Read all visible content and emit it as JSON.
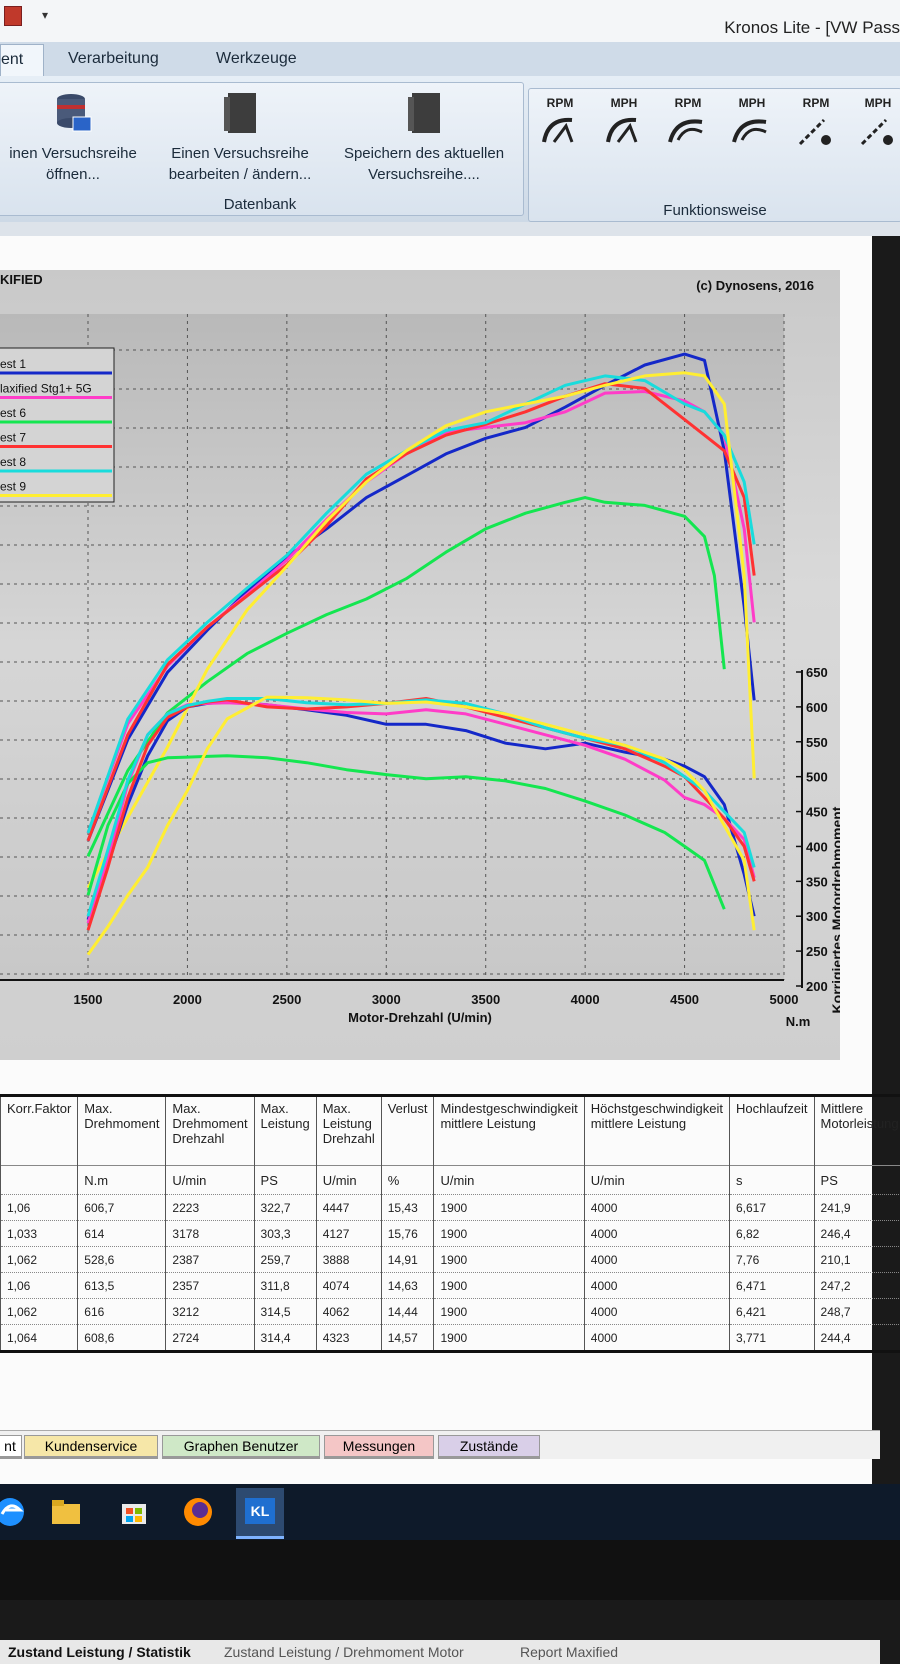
{
  "window": {
    "title": "Kronos Lite - [VW Pass"
  },
  "ribbon": {
    "tabs": [
      "ent",
      "Verarbeitung",
      "Werkzeuge"
    ],
    "buttons": [
      {
        "label1": "inen Versuchsreihe",
        "label2": "öffnen..."
      },
      {
        "label1": "Einen Versuchsreihe",
        "label2": "bearbeiten / ändern..."
      },
      {
        "label1": "Speichern des aktuellen",
        "label2": "Versuchsreihe...."
      }
    ],
    "group_datenbank": "Datenbank",
    "function_buttons": [
      "RPM",
      "MPH",
      "RPM",
      "MPH",
      "RPM",
      "MPH"
    ],
    "group_funktion": "Funktionsweise"
  },
  "chart_data": {
    "type": "line",
    "title": "KIFIED",
    "copyright": "(c) Dynosens, 2016",
    "xlabel": "Motor-Drehzahl (U/min)",
    "ylabel_right": "Korrigiertes Motordrehmoment",
    "yunit_right": "N.m",
    "x_ticks": [
      "1500",
      "2000",
      "2500",
      "3000",
      "3500",
      "4000",
      "4500",
      "5000"
    ],
    "y_ticks_right": [
      "650",
      "600",
      "550",
      "500",
      "450",
      "400",
      "350",
      "300",
      "250",
      "200"
    ],
    "xlim": [
      1000,
      5000
    ],
    "ylim_torque": [
      200,
      650
    ],
    "grid": true,
    "legend_position": "top-left",
    "legend": [
      "est 1",
      "laxified Stg1+ 5G",
      "est 6",
      "est 7",
      "est 8",
      "est 9"
    ],
    "colors": [
      "#1428c8",
      "#ff3cc8",
      "#14e650",
      "#ff3232",
      "#19dcdc",
      "#ffee32"
    ],
    "torque_series": [
      {
        "name": "est 1",
        "x": [
          1500,
          1600,
          1700,
          1800,
          1900,
          2000,
          2100,
          2200,
          2400,
          2600,
          2800,
          3000,
          3200,
          3400,
          3600,
          3800,
          4000,
          4200,
          4400,
          4500,
          4600,
          4700,
          4800,
          4850
        ],
        "y": [
          295,
          375,
          460,
          530,
          580,
          600,
          605,
          607,
          603,
          596,
          588,
          575,
          575,
          566,
          548,
          540,
          548,
          535,
          525,
          515,
          500,
          460,
          360,
          300
        ]
      },
      {
        "name": "laxified Stg1+ 5G",
        "x": [
          1500,
          1600,
          1700,
          1800,
          1900,
          2000,
          2100,
          2200,
          2400,
          2600,
          2800,
          3000,
          3200,
          3400,
          3600,
          3800,
          4000,
          4200,
          4400,
          4500,
          4600,
          4700,
          4800,
          4850
        ],
        "y": [
          290,
          380,
          490,
          560,
          590,
          603,
          605,
          606,
          603,
          597,
          592,
          590,
          596,
          590,
          575,
          560,
          545,
          525,
          495,
          470,
          460,
          440,
          410,
          355
        ]
      },
      {
        "name": "est 6",
        "x": [
          1500,
          1600,
          1700,
          1800,
          1900,
          2000,
          2100,
          2200,
          2400,
          2600,
          2800,
          3000,
          3200,
          3400,
          3600,
          3800,
          4000,
          4200,
          4400,
          4500,
          4600,
          4700
        ],
        "y": [
          330,
          430,
          490,
          520,
          527,
          528,
          529,
          530,
          527,
          520,
          510,
          503,
          497,
          500,
          494,
          483,
          465,
          445,
          420,
          400,
          380,
          310
        ]
      },
      {
        "name": "est 7",
        "x": [
          1500,
          1600,
          1700,
          1800,
          1900,
          2000,
          2100,
          2200,
          2400,
          2600,
          2800,
          3000,
          3200,
          3400,
          3600,
          3800,
          4000,
          4200,
          4400,
          4500,
          4600,
          4700,
          4800,
          4850
        ],
        "y": [
          280,
          370,
          470,
          545,
          585,
          600,
          607,
          610,
          600,
          597,
          600,
          605,
          612,
          600,
          585,
          570,
          555,
          540,
          515,
          500,
          470,
          440,
          400,
          350
        ]
      },
      {
        "name": "est 8",
        "x": [
          1500,
          1600,
          1700,
          1800,
          1900,
          2000,
          2100,
          2200,
          2400,
          2600,
          2800,
          3000,
          3200,
          3400,
          3600,
          3800,
          4000,
          4200,
          4400,
          4500,
          4600,
          4700,
          4800,
          4850
        ],
        "y": [
          300,
          395,
          495,
          560,
          590,
          602,
          608,
          612,
          612,
          606,
          603,
          605,
          610,
          605,
          590,
          570,
          555,
          545,
          520,
          500,
          480,
          450,
          420,
          370
        ]
      },
      {
        "name": "est 9",
        "x": [
          1500,
          1600,
          1700,
          1800,
          1900,
          2000,
          2100,
          2200,
          2400,
          2600,
          2800,
          3000,
          3200,
          3400,
          3600,
          3800,
          4000,
          4200,
          4400,
          4500,
          4600,
          4700,
          4800,
          4850
        ],
        "y": [
          245,
          285,
          330,
          370,
          430,
          480,
          540,
          583,
          614,
          613,
          610,
          605,
          607,
          600,
          590,
          575,
          560,
          545,
          525,
          510,
          480,
          430,
          380,
          280
        ]
      }
    ],
    "power_series_unlabeled_axis": [
      {
        "name": "est 1",
        "x": [
          1500,
          1700,
          1900,
          2100,
          2300,
          2500,
          2700,
          2900,
          3100,
          3300,
          3500,
          3700,
          3900,
          4100,
          4300,
          4500,
          4600,
          4700,
          4800,
          4850
        ],
        "y": [
          70,
          135,
          178,
          205,
          230,
          252,
          270,
          290,
          304,
          318,
          328,
          335,
          348,
          362,
          375,
          382,
          378,
          320,
          220,
          160
        ]
      },
      {
        "name": "laxified Stg1+ 5G",
        "x": [
          1500,
          1700,
          1900,
          2100,
          2300,
          2500,
          2700,
          2900,
          3100,
          3300,
          3500,
          3700,
          3900,
          4100,
          4300,
          4500,
          4600,
          4700,
          4800,
          4850
        ],
        "y": [
          75,
          145,
          182,
          207,
          228,
          250,
          276,
          300,
          318,
          332,
          335,
          338,
          345,
          357,
          358,
          352,
          345,
          330,
          270,
          210
        ]
      },
      {
        "name": "est 6",
        "x": [
          1500,
          1700,
          1900,
          2100,
          2300,
          2500,
          2700,
          2900,
          3100,
          3300,
          3500,
          3700,
          3900,
          4000,
          4100,
          4300,
          4500,
          4600,
          4650,
          4700
        ],
        "y": [
          60,
          115,
          152,
          172,
          190,
          203,
          215,
          225,
          238,
          255,
          270,
          280,
          287,
          290,
          287,
          285,
          278,
          265,
          240,
          180
        ]
      },
      {
        "name": "est 7",
        "x": [
          1500,
          1700,
          1900,
          2100,
          2300,
          2500,
          2700,
          2900,
          3100,
          3300,
          3500,
          3700,
          3900,
          4100,
          4300,
          4500,
          4600,
          4700,
          4800,
          4850
        ],
        "y": [
          70,
          138,
          183,
          207,
          227,
          247,
          272,
          302,
          318,
          330,
          337,
          345,
          355,
          363,
          360,
          340,
          330,
          320,
          290,
          240
        ]
      },
      {
        "name": "est 8",
        "x": [
          1500,
          1700,
          1900,
          2100,
          2300,
          2500,
          2700,
          2900,
          3100,
          3300,
          3500,
          3700,
          3900,
          4100,
          4300,
          4500,
          4600,
          4700,
          4800,
          4850
        ],
        "y": [
          75,
          148,
          186,
          210,
          232,
          253,
          280,
          305,
          320,
          333,
          338,
          350,
          362,
          368,
          365,
          350,
          345,
          330,
          300,
          260
        ]
      },
      {
        "name": "est 9",
        "x": [
          1500,
          1700,
          1900,
          2100,
          2300,
          2500,
          2700,
          2900,
          3100,
          3300,
          3500,
          3700,
          3900,
          4100,
          4300,
          4500,
          4600,
          4700,
          4800,
          4850
        ],
        "y": [
          40,
          85,
          130,
          180,
          218,
          246,
          275,
          300,
          320,
          336,
          345,
          350,
          355,
          362,
          368,
          370,
          368,
          350,
          240,
          110
        ]
      }
    ]
  },
  "stats": {
    "headers": [
      {
        "name": "Korr.Faktor",
        "unit": ""
      },
      {
        "name": "Max. Drehmoment",
        "unit": "N.m"
      },
      {
        "name": "Max. Drehmoment Drehzahl",
        "unit": "U/min"
      },
      {
        "name": "Max. Leistung",
        "unit": "PS"
      },
      {
        "name": "Max. Leistung Drehzahl",
        "unit": "U/min"
      },
      {
        "name": "Verlust",
        "unit": "%"
      },
      {
        "name": "Mindestgeschwindigkeit mittlere Leistung",
        "unit": "U/min"
      },
      {
        "name": "Höchstgeschwindigkeit mittlere Leistung",
        "unit": "U/min"
      },
      {
        "name": "Hochlaufzeit",
        "unit": "s"
      },
      {
        "name": "Mittlere Motorleistung",
        "unit": "PS"
      }
    ],
    "rows": [
      [
        "1,06",
        "606,7",
        "2223",
        "322,7",
        "4447",
        "15,43",
        "1900",
        "4000",
        "6,617",
        "241,9"
      ],
      [
        "1,033",
        "614",
        "3178",
        "303,3",
        "4127",
        "15,76",
        "1900",
        "4000",
        "6,82",
        "246,4"
      ],
      [
        "1,062",
        "528,6",
        "2387",
        "259,7",
        "3888",
        "14,91",
        "1900",
        "4000",
        "7,76",
        "210,1"
      ],
      [
        "1,06",
        "613,5",
        "2357",
        "311,8",
        "4074",
        "14,63",
        "1900",
        "4000",
        "6,471",
        "247,2"
      ],
      [
        "1,062",
        "616",
        "3212",
        "314,5",
        "4062",
        "14,44",
        "1900",
        "4000",
        "6,421",
        "248,7"
      ],
      [
        "1,064",
        "608,6",
        "2724",
        "314,4",
        "4323",
        "14,57",
        "1900",
        "4000",
        "3,771",
        "244,4"
      ]
    ]
  },
  "sheet_tabs": [
    "Zustand Leistung / Statistik",
    "Zustand Leistung / Drehmoment Motor",
    "Report Maxified"
  ],
  "bottom_tabs": [
    {
      "label": "nt",
      "color": "#ffffff"
    },
    {
      "label": "Kundenservice",
      "color": "#f6e7a8"
    },
    {
      "label": "Graphen Benutzer",
      "color": "#cfe8c7"
    },
    {
      "label": "Messungen",
      "color": "#f4c6c6"
    },
    {
      "label": "Zustände",
      "color": "#d9cfe8"
    }
  ],
  "taskbar": {
    "app_badge": "KL"
  }
}
